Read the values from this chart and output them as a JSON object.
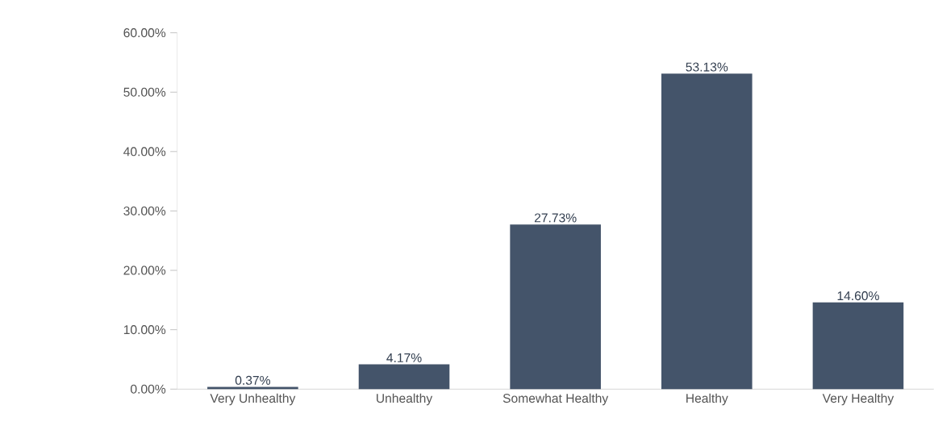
{
  "chart_data": {
    "type": "bar",
    "categories": [
      "Very Unhealthy",
      "Unhealthy",
      "Somewhat Healthy",
      "Healthy",
      "Very Healthy"
    ],
    "values": [
      0.37,
      4.17,
      27.73,
      53.13,
      14.6
    ],
    "value_labels": [
      "0.37%",
      "4.17%",
      "27.73%",
      "53.13%",
      "14.60%"
    ],
    "color": "#44546a",
    "ylim": [
      0,
      60
    ],
    "yticks": [
      {
        "value": 0,
        "label": "0.00%"
      },
      {
        "value": 10,
        "label": "10.00%"
      },
      {
        "value": 20,
        "label": "20.00%"
      },
      {
        "value": 30,
        "label": "30.00%"
      },
      {
        "value": 40,
        "label": "40.00%"
      },
      {
        "value": 50,
        "label": "50.00%"
      },
      {
        "value": 60,
        "label": "60.00%"
      }
    ]
  }
}
